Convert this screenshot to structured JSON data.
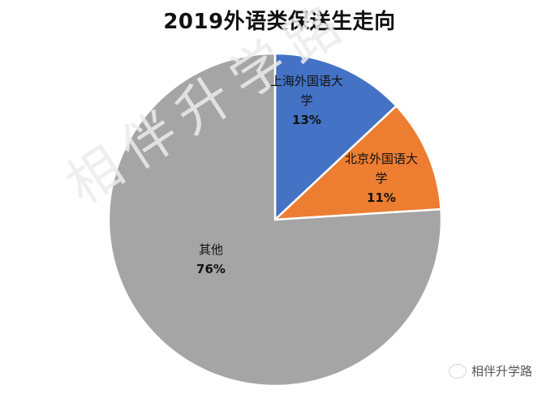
{
  "chart_data": {
    "type": "pie",
    "title": "2019外语类保送生走向",
    "slices": [
      {
        "label": "上海外国语大学",
        "value": 13,
        "display": "13%",
        "color": "#4472C4"
      },
      {
        "label": "北京外国语大学",
        "value": 11,
        "display": "11%",
        "color": "#ED7D31"
      },
      {
        "label": "其他",
        "value": 76,
        "display": "76%",
        "color": "#A5A5A5"
      }
    ],
    "start_angle": "12 o'clock, clockwise",
    "legend": "none (data labels inside slices)"
  },
  "labels": {
    "shanghai_name_1": "上海外国语大",
    "shanghai_name_2": "学",
    "shanghai_pct": "13%",
    "beijing_name_1": "北京外国语大",
    "beijing_name_2": "学",
    "beijing_pct": "11%",
    "other_name": "其他",
    "other_pct": "76%"
  },
  "watermark": "相伴升学路",
  "brand": {
    "name": "相伴升学路"
  }
}
